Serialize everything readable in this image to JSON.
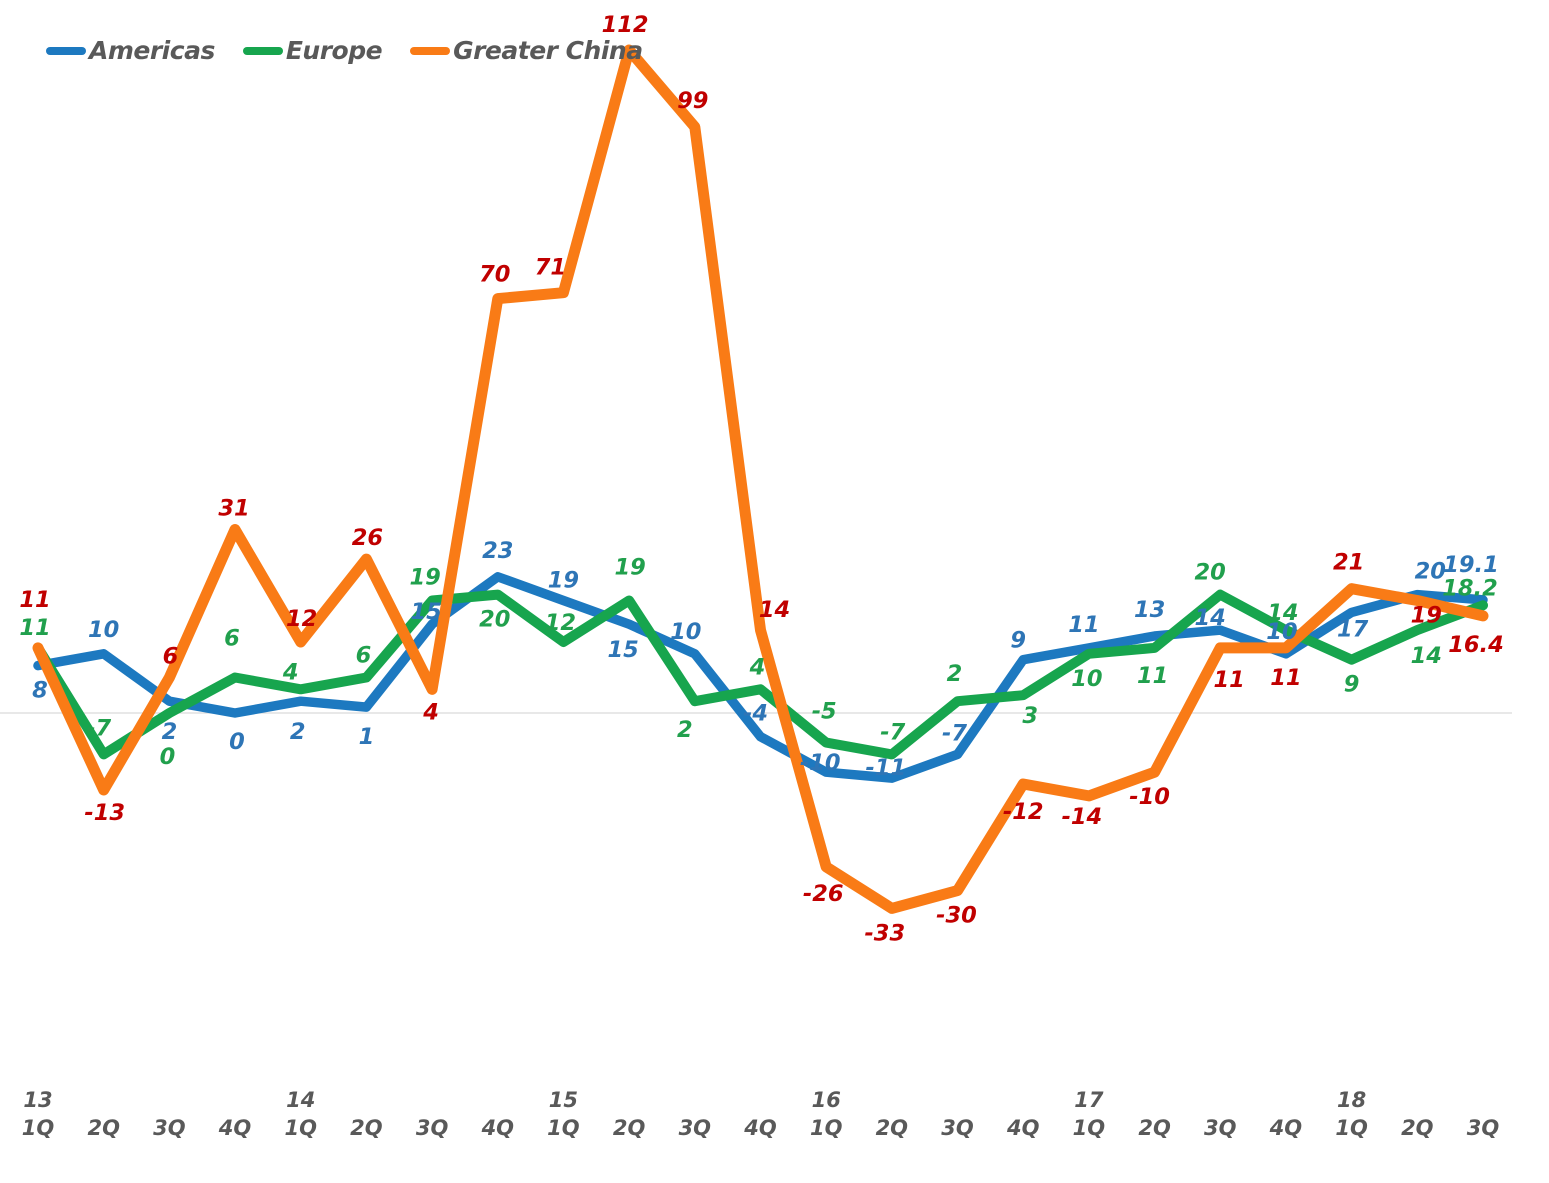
{
  "chart_data": {
    "type": "line",
    "title": "",
    "x": [
      {
        "year": "13",
        "quarter": "1Q"
      },
      {
        "quarter": "2Q"
      },
      {
        "quarter": "3Q"
      },
      {
        "quarter": "4Q"
      },
      {
        "year": "14",
        "quarter": "1Q"
      },
      {
        "quarter": "2Q"
      },
      {
        "quarter": "3Q"
      },
      {
        "quarter": "4Q"
      },
      {
        "year": "15",
        "quarter": "1Q"
      },
      {
        "quarter": "2Q"
      },
      {
        "quarter": "3Q"
      },
      {
        "quarter": "4Q"
      },
      {
        "year": "16",
        "quarter": "1Q"
      },
      {
        "quarter": "2Q"
      },
      {
        "quarter": "3Q"
      },
      {
        "quarter": "4Q"
      },
      {
        "year": "17",
        "quarter": "1Q"
      },
      {
        "quarter": "2Q"
      },
      {
        "quarter": "3Q"
      },
      {
        "quarter": "4Q"
      },
      {
        "year": "18",
        "quarter": "1Q"
      },
      {
        "quarter": "2Q"
      },
      {
        "quarter": "3Q"
      }
    ],
    "series": [
      {
        "name": "Americas",
        "color": "#1D79C0",
        "label_color": "#2E75B6",
        "values": [
          8,
          10,
          2,
          0,
          2,
          1,
          15,
          23,
          19,
          15,
          10,
          -4,
          -10,
          -11,
          -7,
          9,
          11,
          13,
          14,
          10,
          17,
          20,
          19.1
        ]
      },
      {
        "name": "Europe",
        "color": "#17A54E",
        "label_color": "#21A04D",
        "values": [
          11,
          -7,
          0,
          6,
          4,
          6,
          19,
          20,
          12,
          19,
          2,
          4,
          -5,
          -7,
          2,
          3,
          10,
          11,
          20,
          14,
          9,
          14,
          18.2
        ]
      },
      {
        "name": "Greater China",
        "color": "#F97B16",
        "label_color": "#C00000",
        "values": [
          11,
          -13,
          6,
          31,
          12,
          26,
          4,
          70,
          71,
          112,
          99,
          14,
          -26,
          -33,
          -30,
          -12,
          -14,
          -10,
          11,
          11,
          21,
          19,
          16.4
        ]
      }
    ],
    "ylim": [
      -40,
      120
    ],
    "grid": "zero-line-only",
    "zero_line_color": "#D9D9D9",
    "axis_label_color": "#595959",
    "legend_position": "top-left",
    "data_labels": true
  }
}
